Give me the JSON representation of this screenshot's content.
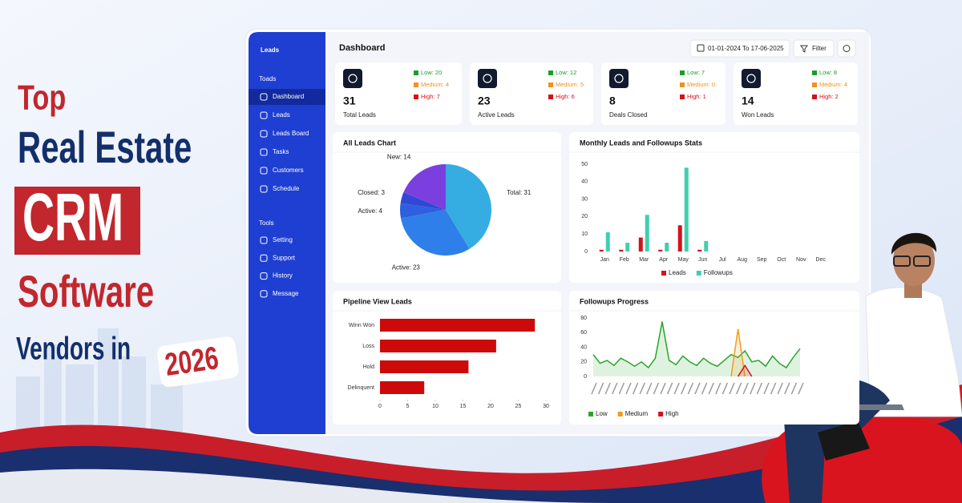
{
  "headline": {
    "line1": "Top",
    "line2": "Real Estate",
    "line3": "CRM",
    "line4": "Software",
    "line5": "Vendors in",
    "year": "2026"
  },
  "dashboard": {
    "sidebar": {
      "title": "Leads",
      "section1": "Toads",
      "items1": [
        "Dashboard",
        "Leads",
        "Leads Board",
        "Tasks",
        "Customers",
        "Schedule"
      ],
      "section2": "Tools",
      "items2": [
        "Setting",
        "Support",
        "History",
        "Message"
      ]
    },
    "header": {
      "title": "Dashboard",
      "date_range": "01-01-2024 To 17-06-2025",
      "filter": "Filter"
    },
    "stats": [
      {
        "value": 31,
        "label": "Total Leads",
        "low": "Low: 20",
        "medium": "Medium: 4",
        "high": "High: 7"
      },
      {
        "value": 23,
        "label": "Active Leads",
        "low": "Low: 12",
        "medium": "Medium: 5",
        "high": "High: 6"
      },
      {
        "value": 8,
        "label": "Deals Closed",
        "low": "Low: 7",
        "medium": "Medium: 0",
        "high": "High: 1"
      },
      {
        "value": 14,
        "label": "Won Leads",
        "low": "Low: 8",
        "medium": "Medium: 4",
        "high": "High: 2"
      }
    ],
    "charts": [
      {
        "type": "pie",
        "title": "All Leads Chart",
        "values": [
          31,
          23,
          4,
          3,
          14
        ],
        "value_labels": [
          "Total: 31",
          "Active: 23",
          "Active: 4",
          "Closed: 3",
          "New: 14"
        ],
        "colors": [
          "#35ade2",
          "#2f7fea",
          "#2f5fde",
          "#3048d6",
          "#7b3fe0"
        ]
      },
      {
        "type": "bar",
        "title": "Monthly Leads and Followups Stats",
        "categories": [
          "Jan",
          "Feb",
          "Mar",
          "Apr",
          "May",
          "Jun",
          "Jul",
          "Aug",
          "Sep",
          "Oct",
          "Nov",
          "Dec"
        ],
        "series": [
          {
            "name": "Leads",
            "color": "#d3121a",
            "values": [
              1,
              1,
              8,
              1,
              15,
              1,
              null,
              null,
              null,
              null,
              null,
              null
            ]
          },
          {
            "name": "Followups",
            "color": "#3fd0ae",
            "values": [
              11,
              5,
              21,
              5,
              48,
              6,
              null,
              null,
              null,
              null,
              null,
              null
            ]
          }
        ],
        "ylim": [
          0,
          50
        ],
        "yticks": [
          0,
          10,
          20,
          30,
          40,
          50
        ],
        "legend": "bottom"
      },
      {
        "type": "hbar",
        "title": "Pipeline View Leads",
        "categories": [
          "Winn Won",
          "Loss",
          "Hold",
          "Delinquent"
        ],
        "values": [
          28,
          21,
          16,
          8
        ],
        "color": "#cc0a0a",
        "xlim": [
          0,
          30
        ],
        "xticks": [
          0,
          5,
          10,
          15,
          20,
          25,
          30
        ]
      },
      {
        "type": "line",
        "title": "Followups Progress",
        "series": [
          {
            "name": "Low",
            "color": "#2aa52a",
            "values": [
              30,
              18,
              22,
              15,
              25,
              20,
              14,
              20,
              12,
              25,
              75,
              22,
              16,
              28,
              20,
              15,
              25,
              18,
              14,
              22,
              30,
              26,
              35,
              20,
              22,
              14,
              28,
              18,
              12,
              26,
              38
            ]
          },
          {
            "name": "Medium",
            "color": "#f29a1f",
            "values": [
              null,
              null,
              null,
              null,
              null,
              null,
              null,
              null,
              null,
              null,
              null,
              null,
              null,
              null,
              null,
              null,
              null,
              null,
              null,
              null,
              0,
              65,
              0,
              null,
              null,
              null,
              null,
              null,
              null,
              null,
              null
            ]
          },
          {
            "name": "High",
            "color": "#d3121a",
            "values": [
              null,
              null,
              null,
              null,
              null,
              null,
              null,
              null,
              null,
              null,
              null,
              null,
              null,
              null,
              null,
              null,
              null,
              null,
              null,
              null,
              null,
              0,
              15,
              0,
              null,
              null,
              null,
              null,
              null,
              null,
              null
            ]
          }
        ],
        "ylim": [
          0,
          80
        ],
        "yticks": [
          0,
          20,
          40,
          60,
          80
        ],
        "legend": "bottom"
      }
    ]
  }
}
